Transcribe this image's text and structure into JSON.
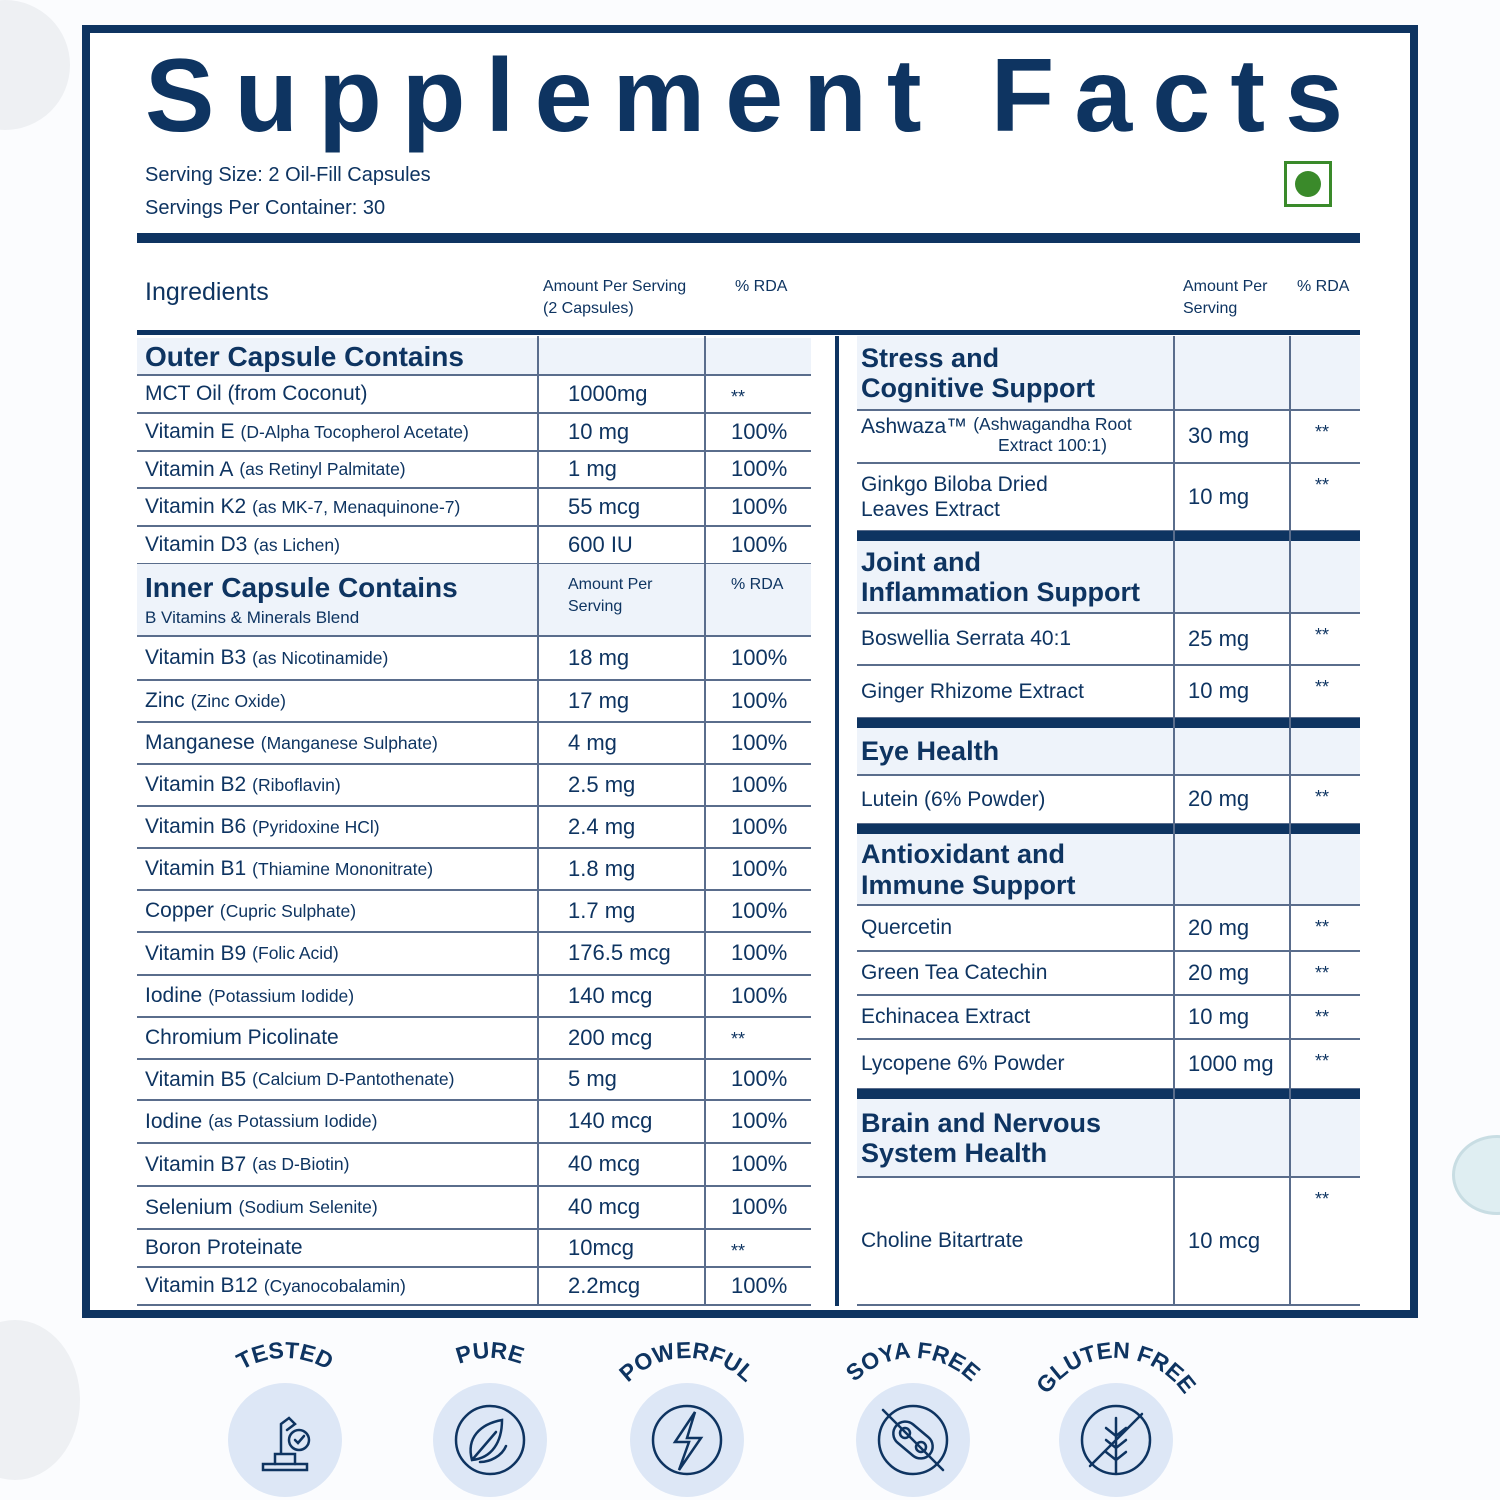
{
  "title": "Supplement Facts",
  "serving_size": "Serving Size: 2 Oil-Fill Capsules",
  "servings_per_container": "Servings Per Container: 30",
  "left": {
    "headers": {
      "ingredients": "Ingredients",
      "amount": "Amount Per Serving",
      "amount_note": "(2 Capsules)",
      "rda": "% RDA"
    },
    "sections": [
      {
        "title": "Outer Capsule Contains",
        "rows": [
          {
            "name": "MCT Oil (from Coconut)",
            "amount": "1000mg",
            "rda": "**"
          },
          {
            "name": "Vitamin E",
            "detail": "(D-Alpha Tocopherol Acetate)",
            "amount": "10 mg",
            "rda": "100%"
          },
          {
            "name": "Vitamin A",
            "detail": "(as Retinyl Palmitate)",
            "amount": "1 mg",
            "rda": "100%"
          },
          {
            "name": "Vitamin K2",
            "detail": "(as MK-7, Menaquinone-7)",
            "amount": "55 mcg",
            "rda": "100%"
          },
          {
            "name": "Vitamin D3",
            "detail": "(as Lichen)",
            "amount": "600 IU",
            "rda": "100%"
          }
        ]
      },
      {
        "title": "Inner Capsule Contains",
        "subtitle": "B Vitamins & Minerals Blend",
        "amount_header": "Amount Per\nServing",
        "rda_header": "% RDA",
        "rows": [
          {
            "name": "Vitamin B3",
            "detail": "(as Nicotinamide)",
            "amount": "18 mg",
            "rda": "100%"
          },
          {
            "name": "Zinc",
            "detail": "(Zinc Oxide)",
            "amount": "17 mg",
            "rda": "100%"
          },
          {
            "name": "Manganese",
            "detail": "(Manganese Sulphate)",
            "amount": "4 mg",
            "rda": "100%"
          },
          {
            "name": "Vitamin B2",
            "detail": "(Riboflavin)",
            "amount": "2.5 mg",
            "rda": "100%"
          },
          {
            "name": "Vitamin B6",
            "detail": "(Pyridoxine HCl)",
            "amount": "2.4 mg",
            "rda": "100%"
          },
          {
            "name": "Vitamin B1",
            "detail": "(Thiamine Mononitrate)",
            "amount": "1.8 mg",
            "rda": "100%"
          },
          {
            "name": "Copper",
            "detail": "(Cupric Sulphate)",
            "amount": "1.7 mg",
            "rda": "100%"
          },
          {
            "name": "Vitamin B9",
            "detail": "(Folic Acid)",
            "amount": "176.5 mcg",
            "rda": "100%"
          },
          {
            "name": "Iodine",
            "detail": "(Potassium Iodide)",
            "amount": "140 mcg",
            "rda": "100%"
          },
          {
            "name": "Chromium Picolinate",
            "amount": "200 mcg",
            "rda": "**"
          },
          {
            "name": "Vitamin B5",
            "detail": "(Calcium D-Pantothenate)",
            "amount": "5 mg",
            "rda": "100%"
          },
          {
            "name": "Iodine",
            "detail": "(as Potassium Iodide)",
            "amount": "140 mcg",
            "rda": "100%"
          },
          {
            "name": "Vitamin B7",
            "detail": "(as D-Biotin)",
            "amount": "40 mcg",
            "rda": "100%"
          },
          {
            "name": "Selenium",
            "detail": "(Sodium Selenite)",
            "amount": "40 mcg",
            "rda": "100%"
          },
          {
            "name": "Boron Proteinate",
            "amount": "10mcg",
            "rda": "**"
          },
          {
            "name": "Vitamin B12",
            "detail": "(Cyanocobalamin)",
            "amount": "2.2mcg",
            "rda": "100%"
          }
        ]
      }
    ]
  },
  "right": {
    "headers": {
      "amount": "Amount Per\nServing",
      "rda": "% RDA"
    },
    "sections": [
      {
        "title": "Stress and\nCognitive Support",
        "rows": [
          {
            "name": "Ashwaza™",
            "detail": "(Ashwagandha Root\nExtract 100:1)",
            "amount": "30 mg",
            "rda": "**"
          },
          {
            "name": "Ginkgo Biloba Dried\nLeaves Extract",
            "amount": "10 mg",
            "rda": "**"
          }
        ]
      },
      {
        "title": "Joint and\nInflammation Support",
        "rows": [
          {
            "name": "Boswellia Serrata 40:1",
            "amount": "25 mg",
            "rda": "**"
          },
          {
            "name": "Ginger Rhizome Extract",
            "amount": "10 mg",
            "rda": "**"
          }
        ]
      },
      {
        "title": "Eye Health",
        "rows": [
          {
            "name": "Lutein (6% Powder)",
            "amount": "20 mg",
            "rda": "**"
          }
        ]
      },
      {
        "title": "Antioxidant and\nImmune Support",
        "rows": [
          {
            "name": "Quercetin",
            "amount": "20 mg",
            "rda": "**"
          },
          {
            "name": "Green Tea Catechin",
            "amount": "20 mg",
            "rda": "**"
          },
          {
            "name": "Echinacea Extract",
            "amount": "10 mg",
            "rda": "**"
          },
          {
            "name": "Lycopene 6% Powder",
            "amount": "1000 mg",
            "rda": "**"
          }
        ]
      },
      {
        "title": "Brain and Nervous\nSystem Health",
        "rows": [
          {
            "name": "Choline Bitartrate",
            "amount": "10 mcg",
            "rda": "**"
          }
        ]
      }
    ]
  },
  "badges": [
    "TESTED",
    "PURE",
    "POWERFUL",
    "SOYA FREE",
    "GLUTEN FREE"
  ]
}
